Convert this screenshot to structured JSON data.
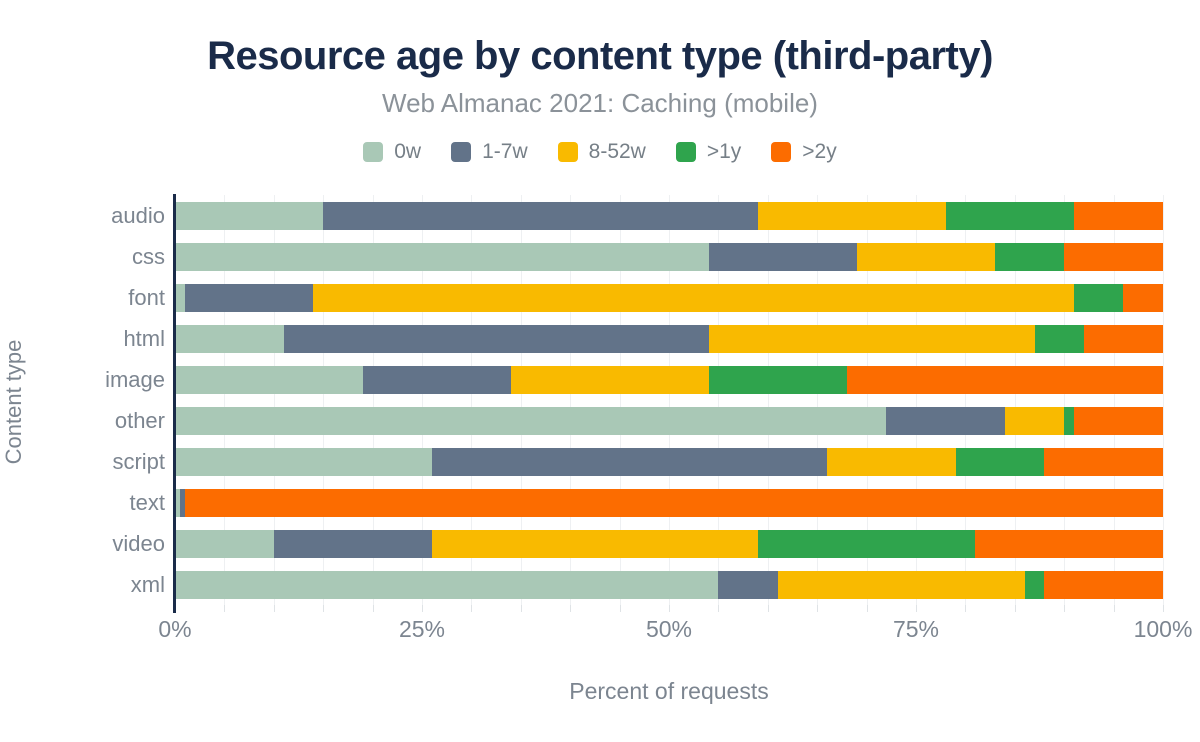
{
  "title": "Resource age by content type (third-party)",
  "subtitle": "Web Almanac 2021: Caching (mobile)",
  "colors": {
    "title_navy": "#1a2b49",
    "subtitle_gray": "#8b9299",
    "axis_gray": "#7c8590",
    "gridline": "#eef0f2",
    "age_0w": "#a9c8b6",
    "age_1_7w": "#627389",
    "age_8_52w": "#f9ba00",
    "age_gt1y": "#2fa44d",
    "age_gt2y": "#fc6c00"
  },
  "chart_data": {
    "type": "bar",
    "stacked": true,
    "orientation": "horizontal",
    "title": "Resource age by content type (third-party)",
    "subtitle": "Web Almanac 2021: Caching (mobile)",
    "xlabel": "Percent of requests",
    "ylabel": "Content type",
    "xlim": [
      0,
      100
    ],
    "xticks": [
      {
        "label": "0%",
        "value": 0
      },
      {
        "label": "25%",
        "value": 25
      },
      {
        "label": "50%",
        "value": 50
      },
      {
        "label": "75%",
        "value": 75
      },
      {
        "label": "100%",
        "value": 100
      }
    ],
    "grid": true,
    "minor_grid_step": 5,
    "legend_position": "top",
    "categories": [
      "audio",
      "css",
      "font",
      "html",
      "image",
      "other",
      "script",
      "text",
      "video",
      "xml"
    ],
    "series": [
      {
        "name": "0w",
        "color": "#a9c8b6",
        "values": [
          15,
          54,
          1,
          11,
          19,
          72,
          26,
          0.5,
          10,
          55
        ]
      },
      {
        "name": "1-7w",
        "color": "#627389",
        "values": [
          44,
          15,
          13,
          43,
          15,
          12,
          40,
          0.5,
          16,
          6
        ]
      },
      {
        "name": "8-52w",
        "color": "#f9ba00",
        "values": [
          19,
          14,
          77,
          33,
          20,
          6,
          13,
          0,
          33,
          25
        ]
      },
      {
        "name": ">1y",
        "color": "#2fa44d",
        "values": [
          13,
          7,
          5,
          5,
          14,
          1,
          9,
          0,
          22,
          2
        ]
      },
      {
        "name": ">2y",
        "color": "#fc6c00",
        "values": [
          9,
          10,
          4,
          8,
          32,
          9,
          12,
          99,
          19,
          12
        ]
      }
    ]
  }
}
